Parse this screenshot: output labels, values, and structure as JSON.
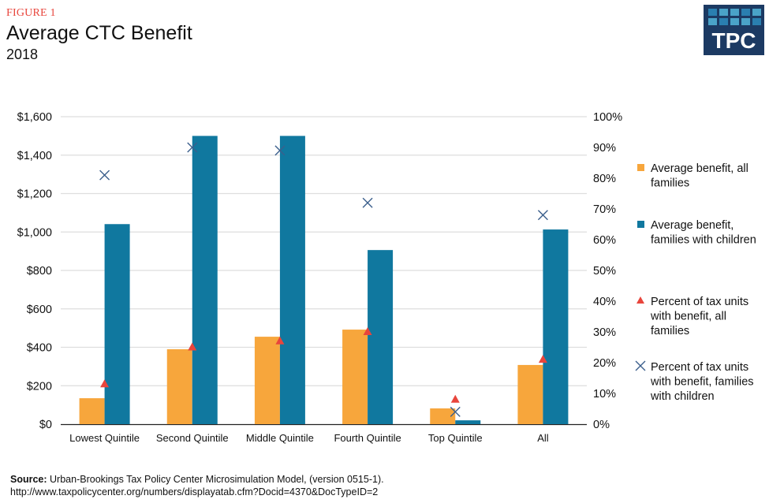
{
  "header": {
    "figure_label": "FIGURE 1",
    "title": "Average CTC Benefit",
    "subtitle": "2018",
    "logo_text": "TPC"
  },
  "source": {
    "label": "Source:",
    "text": "Urban-Brookings Tax Policy Center Microsimulation  Model, (version 0515-1).",
    "url": "http://www.taxpolicycenter.org/numbers/displayatab.cfm?Docid=4370&DocTypeID=2"
  },
  "chart_data": {
    "type": "bar",
    "title": "Average CTC Benefit",
    "subtitle": "2018",
    "categories": [
      "Lowest Quintile",
      "Second Quintile",
      "Middle Quintile",
      "Fourth Quintile",
      "Top Quintile",
      "All"
    ],
    "y_left": {
      "ylim": [
        0,
        1600
      ],
      "ticks": [
        "$0",
        "$200",
        "$400",
        "$600",
        "$800",
        "$1,000",
        "$1,200",
        "$1,400",
        "$1,600"
      ]
    },
    "y_right": {
      "ylim": [
        0,
        100
      ],
      "ticks": [
        "0%",
        "10%",
        "20%",
        "30%",
        "40%",
        "50%",
        "60%",
        "70%",
        "80%",
        "90%",
        "100%"
      ]
    },
    "grid": true,
    "legend_position": "right",
    "series": [
      {
        "name": "Average benefit, all families",
        "legend_lines": [
          "Average benefit, all",
          "families"
        ],
        "type": "bar",
        "axis": "left",
        "color": "#f7a63c",
        "values": [
          135,
          390,
          455,
          492,
          82,
          308
        ]
      },
      {
        "name": "Average benefit, families with children",
        "legend_lines": [
          "Average benefit,",
          "families with children"
        ],
        "type": "bar",
        "axis": "left",
        "color": "#10789f",
        "values": [
          1041,
          1500,
          1500,
          906,
          20,
          1013
        ]
      },
      {
        "name": "Percent of tax units with benefit, all families",
        "legend_lines": [
          "Percent of tax units",
          "with benefit, all",
          "families"
        ],
        "type": "scatter",
        "marker": "triangle",
        "axis": "right",
        "color": "#e8453c",
        "values": [
          13,
          25,
          27,
          30,
          8,
          21
        ]
      },
      {
        "name": "Percent of tax units with benefit, families with children",
        "legend_lines": [
          "Percent of tax units",
          "with benefit, families",
          "with children"
        ],
        "type": "scatter",
        "marker": "x",
        "axis": "right",
        "color": "#3b5f8c",
        "values": [
          81,
          90,
          89,
          72,
          4,
          68
        ]
      }
    ]
  }
}
